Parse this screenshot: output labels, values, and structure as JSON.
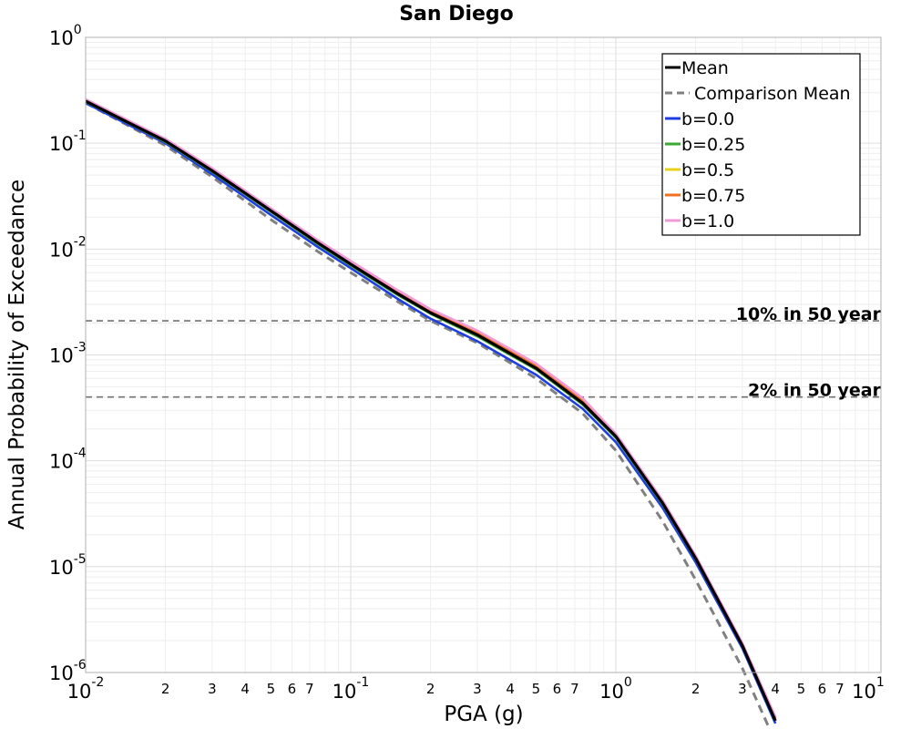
{
  "chart_data": {
    "type": "line",
    "title": "San Diego",
    "xlabel": "PGA (g)",
    "ylabel": "Annual Probability of Exceedance",
    "xscale": "log",
    "yscale": "log",
    "xlim": [
      0.01,
      10
    ],
    "ylim": [
      1e-06,
      1
    ],
    "grid": true,
    "legend_position": "top-right",
    "x_major_ticks": [
      {
        "base": "10",
        "exp": "-2"
      },
      {
        "base": "10",
        "exp": "-1"
      },
      {
        "base": "10",
        "exp": "0"
      },
      {
        "base": "10",
        "exp": "1"
      }
    ],
    "y_major_ticks": [
      {
        "base": "10",
        "exp": "0"
      },
      {
        "base": "10",
        "exp": "-1"
      },
      {
        "base": "10",
        "exp": "-2"
      },
      {
        "base": "10",
        "exp": "-3"
      },
      {
        "base": "10",
        "exp": "-4"
      },
      {
        "base": "10",
        "exp": "-5"
      },
      {
        "base": "10",
        "exp": "-6"
      }
    ],
    "x_minor_tick_labels": [
      "2",
      "3",
      "4",
      "5",
      "6",
      "7"
    ],
    "reference_lines": [
      {
        "label": "10% in 50 year",
        "y": 0.0021
      },
      {
        "label": "2% in 50 year",
        "y": 0.0004
      }
    ],
    "x": [
      0.01,
      0.015,
      0.02,
      0.03,
      0.05,
      0.075,
      0.1,
      0.15,
      0.2,
      0.3,
      0.5,
      0.75,
      1.0,
      1.5,
      2.0,
      3.0,
      4.0
    ],
    "series": [
      {
        "name": "Mean",
        "color": "#000000",
        "dash": "solid",
        "values": [
          0.25,
          0.15,
          0.105,
          0.055,
          0.023,
          0.0115,
          0.0072,
          0.0038,
          0.0025,
          0.00155,
          0.00075,
          0.00035,
          0.00017,
          4e-05,
          1.2e-05,
          1.8e-06,
          3.5e-07
        ]
      },
      {
        "name": "Comparison Mean",
        "color": "#808080",
        "dash": "dashed",
        "values": [
          0.24,
          0.14,
          0.095,
          0.048,
          0.019,
          0.0095,
          0.006,
          0.0032,
          0.0021,
          0.0013,
          0.0006,
          0.00028,
          0.000125,
          2.7e-05,
          7.5e-06,
          1.1e-06,
          2.2e-07
        ]
      },
      {
        "name": "b=0.0",
        "color": "#1f3ee0",
        "dash": "solid",
        "values": [
          0.24,
          0.143,
          0.1,
          0.051,
          0.021,
          0.0105,
          0.0066,
          0.0034,
          0.0022,
          0.00135,
          0.00065,
          0.00031,
          0.00015,
          3.6e-05,
          1.1e-05,
          1.7e-06,
          3.3e-07
        ]
      },
      {
        "name": "b=0.25",
        "color": "#3aa832",
        "dash": "solid",
        "values": [
          0.247,
          0.148,
          0.103,
          0.054,
          0.0225,
          0.0112,
          0.007,
          0.0037,
          0.00245,
          0.0015,
          0.00073,
          0.00034,
          0.000165,
          3.9e-05,
          1.18e-05,
          1.8e-06,
          3.5e-07
        ]
      },
      {
        "name": "b=0.5",
        "color": "#e6d21c",
        "dash": "solid",
        "values": [
          0.25,
          0.15,
          0.105,
          0.055,
          0.023,
          0.0115,
          0.0072,
          0.0038,
          0.0025,
          0.00158,
          0.00077,
          0.00036,
          0.000172,
          4.05e-05,
          1.21e-05,
          1.82e-06,
          3.6e-07
        ]
      },
      {
        "name": "b=0.75",
        "color": "#f07020",
        "dash": "solid",
        "values": [
          0.255,
          0.153,
          0.107,
          0.056,
          0.0235,
          0.0118,
          0.0074,
          0.0039,
          0.0026,
          0.00163,
          0.0008,
          0.00037,
          0.000176,
          4.15e-05,
          1.24e-05,
          1.86e-06,
          3.7e-07
        ]
      },
      {
        "name": "b=1.0",
        "color": "#f29ad8",
        "dash": "solid",
        "values": [
          0.26,
          0.157,
          0.11,
          0.058,
          0.0242,
          0.0122,
          0.0077,
          0.0041,
          0.0027,
          0.0017,
          0.00083,
          0.00039,
          0.00018,
          4.25e-05,
          1.27e-05,
          1.9e-06,
          3.8e-07
        ]
      }
    ]
  }
}
